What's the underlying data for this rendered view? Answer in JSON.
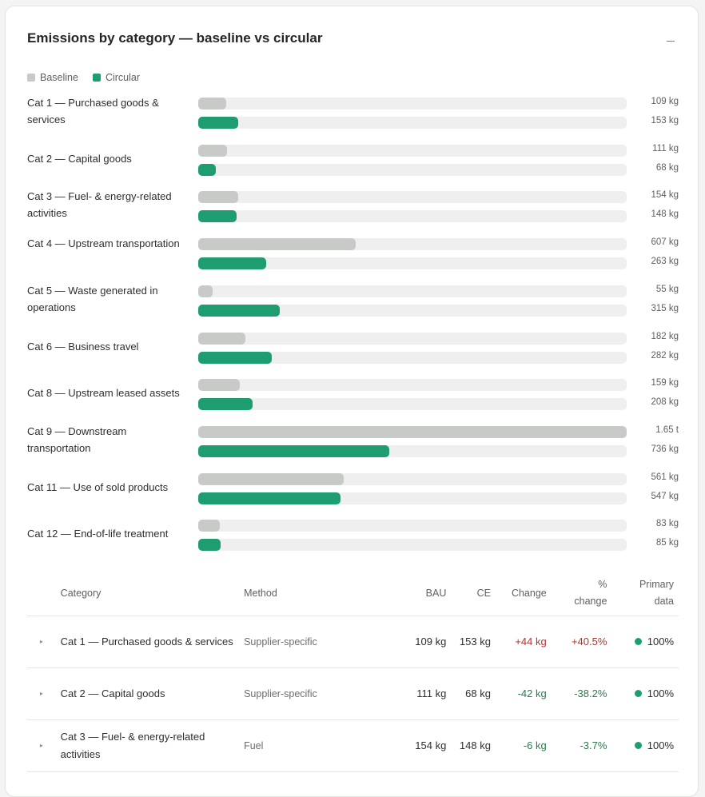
{
  "card": {
    "title": "Emissions by category — baseline vs circular",
    "collapse_icon": "minus-icon"
  },
  "colors": {
    "baseline": "#c8cac8",
    "circular": "#1e9e70",
    "increase": "#a33a34",
    "decrease": "#2a7a4c"
  },
  "legend": [
    {
      "label": "Baseline",
      "color": "#c8cac8"
    },
    {
      "label": "Circular",
      "color": "#1e9e70"
    }
  ],
  "chart_data": {
    "type": "bar",
    "orientation": "horizontal",
    "unit": "kg",
    "xlim": [
      0,
      1650
    ],
    "grid": false,
    "legend_position": "top-left",
    "categories": [
      "Cat 1 — Purchased goods & services",
      "Cat 2 — Capital goods",
      "Cat 3 — Fuel- & energy-related activities",
      "Cat 4 — Upstream transportation",
      "Cat 5 — Waste generated in operations",
      "Cat 6 — Business travel",
      "Cat 8 — Upstream leased assets",
      "Cat 9 — Downstream transportation",
      "Cat 11 — Use of sold products",
      "Cat 12 — End-of-life treatment"
    ],
    "series": [
      {
        "name": "Baseline",
        "values": [
          109,
          111,
          154,
          607,
          55,
          182,
          159,
          1650,
          561,
          83
        ],
        "labels": [
          "109 kg",
          "111 kg",
          "154 kg",
          "607 kg",
          "55 kg",
          "182 kg",
          "159 kg",
          "1.65 t",
          "561 kg",
          "83 kg"
        ]
      },
      {
        "name": "Circular",
        "values": [
          153,
          68,
          148,
          263,
          315,
          282,
          208,
          736,
          547,
          85
        ],
        "labels": [
          "153 kg",
          "68 kg",
          "148 kg",
          "263 kg",
          "315 kg",
          "282 kg",
          "208 kg",
          "736 kg",
          "547 kg",
          "85 kg"
        ]
      }
    ]
  },
  "table": {
    "headers": {
      "category": "Category",
      "method": "Method",
      "bau": "BAU",
      "ce": "CE",
      "change": "Change",
      "pct_line1": "%",
      "pct_line2": "change",
      "primary_line1": "Primary",
      "primary_line2": "data"
    },
    "expand_icon": "caret-right-icon",
    "rows": [
      {
        "category": "Cat 1 — Purchased goods & services",
        "method": "Supplier-specific",
        "bau": "109 kg",
        "ce": "153 kg",
        "change": "+44 kg",
        "pct": "+40.5%",
        "primary": "100%",
        "trend": "up"
      },
      {
        "category": "Cat 2 — Capital goods",
        "method": "Supplier-specific",
        "bau": "111 kg",
        "ce": "68 kg",
        "change": "-42 kg",
        "pct": "-38.2%",
        "primary": "100%",
        "trend": "down"
      },
      {
        "category": "Cat 3 — Fuel- & energy-related activities",
        "method": "Fuel",
        "bau": "154 kg",
        "ce": "148 kg",
        "change": "-6 kg",
        "pct": "-3.7%",
        "primary": "100%",
        "trend": "down"
      }
    ]
  }
}
